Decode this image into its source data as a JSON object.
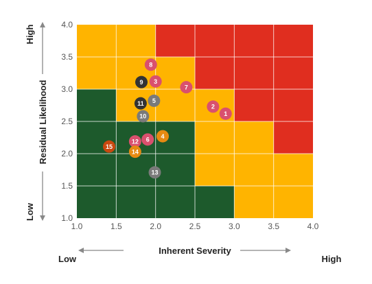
{
  "chart_data": {
    "type": "scatter",
    "xlabel": "Inherent Severity",
    "ylabel": "Residual Likelihood",
    "xlim": [
      1.0,
      4.0
    ],
    "ylim": [
      1.0,
      4.0
    ],
    "xticks": [
      "1.0",
      "1.5",
      "2.0",
      "2.5",
      "3.0",
      "3.5",
      "4.0"
    ],
    "yticks": [
      "1.0",
      "1.5",
      "2.0",
      "2.5",
      "3.0",
      "3.5",
      "4.0"
    ],
    "x_low_label": "Low",
    "x_high_label": "High",
    "y_low_label": "Low",
    "y_high_label": "High",
    "grid": true,
    "colors": {
      "green": "#1d5a2c",
      "yellow": "#ffb400",
      "red": "#e02e1f",
      "grid": "#ffffff"
    },
    "zones": [
      {
        "color": "green",
        "x": [
          1.0,
          1.5
        ],
        "y": [
          1.0,
          3.0
        ]
      },
      {
        "color": "green",
        "x": [
          1.5,
          2.5
        ],
        "y": [
          1.0,
          2.5
        ]
      },
      {
        "color": "green",
        "x": [
          2.5,
          3.0
        ],
        "y": [
          1.0,
          1.5
        ]
      },
      {
        "color": "yellow",
        "x": [
          1.0,
          2.0
        ],
        "y": [
          3.0,
          4.0
        ]
      },
      {
        "color": "yellow",
        "x": [
          1.5,
          2.5
        ],
        "y": [
          2.5,
          3.0
        ]
      },
      {
        "color": "yellow",
        "x": [
          2.0,
          2.5
        ],
        "y": [
          3.0,
          3.5
        ]
      },
      {
        "color": "yellow",
        "x": [
          2.5,
          3.0
        ],
        "y": [
          1.5,
          3.0
        ]
      },
      {
        "color": "yellow",
        "x": [
          3.0,
          3.5
        ],
        "y": [
          1.0,
          2.5
        ]
      },
      {
        "color": "yellow",
        "x": [
          3.5,
          4.0
        ],
        "y": [
          1.0,
          2.0
        ]
      },
      {
        "color": "red",
        "x": [
          2.0,
          4.0
        ],
        "y": [
          3.5,
          4.0
        ]
      },
      {
        "color": "red",
        "x": [
          2.5,
          4.0
        ],
        "y": [
          3.0,
          3.5
        ]
      },
      {
        "color": "red",
        "x": [
          3.0,
          4.0
        ],
        "y": [
          2.5,
          3.0
        ]
      },
      {
        "color": "red",
        "x": [
          3.5,
          4.0
        ],
        "y": [
          2.0,
          2.5
        ]
      }
    ],
    "points": [
      {
        "label": "1",
        "x": 2.89,
        "y": 2.62,
        "color": "#d9506e"
      },
      {
        "label": "2",
        "x": 2.73,
        "y": 2.73,
        "color": "#d9506e"
      },
      {
        "label": "3",
        "x": 2.0,
        "y": 3.12,
        "color": "#d9506e"
      },
      {
        "label": "4",
        "x": 2.09,
        "y": 2.27,
        "color": "#e68a12"
      },
      {
        "label": "5",
        "x": 1.98,
        "y": 2.82,
        "color": "#7a7a7a"
      },
      {
        "label": "6",
        "x": 1.9,
        "y": 2.22,
        "color": "#d9506e"
      },
      {
        "label": "7",
        "x": 2.39,
        "y": 3.03,
        "color": "#d9506e"
      },
      {
        "label": "8",
        "x": 1.94,
        "y": 3.38,
        "color": "#d9506e"
      },
      {
        "label": "9",
        "x": 1.82,
        "y": 3.11,
        "color": "#333333"
      },
      {
        "label": "10",
        "x": 1.84,
        "y": 2.58,
        "color": "#7a7a7a"
      },
      {
        "label": "11",
        "x": 1.81,
        "y": 2.78,
        "color": "#333333"
      },
      {
        "label": "12",
        "x": 1.74,
        "y": 2.19,
        "color": "#d9506e"
      },
      {
        "label": "13",
        "x": 1.99,
        "y": 1.71,
        "color": "#7a7a7a"
      },
      {
        "label": "14",
        "x": 1.74,
        "y": 2.03,
        "color": "#e68a12"
      },
      {
        "label": "15",
        "x": 1.41,
        "y": 2.11,
        "color": "#c9480f"
      }
    ]
  }
}
